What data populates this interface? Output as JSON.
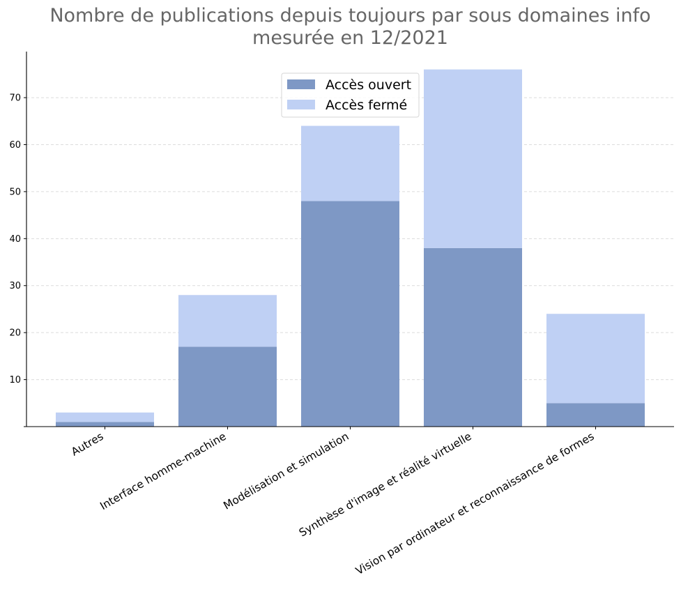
{
  "chart_data": {
    "type": "bar",
    "stacked": true,
    "title": "Nombre de publications depuis toujours par sous domaines info\nmesurée en 12/2021",
    "xlabel": "",
    "ylabel": "",
    "categories": [
      "Autres",
      "Interface homme-machine",
      "Modélisation et simulation",
      "Synthèse d'image et réalité virtuelle",
      "Vision par ordinateur et reconnaissance de formes"
    ],
    "series": [
      {
        "name": "Accès ouvert",
        "values": [
          1,
          17,
          48,
          38,
          5
        ],
        "color": "#7e98c5"
      },
      {
        "name": "Accès fermé",
        "values": [
          2,
          11,
          16,
          38,
          19
        ],
        "color": "#bfd0f4"
      }
    ],
    "ylim": [
      0,
      79.8
    ],
    "yticks": [
      10,
      20,
      30,
      40,
      50,
      60,
      70
    ],
    "grid": "y-dashed",
    "legend_position": "top-center"
  }
}
